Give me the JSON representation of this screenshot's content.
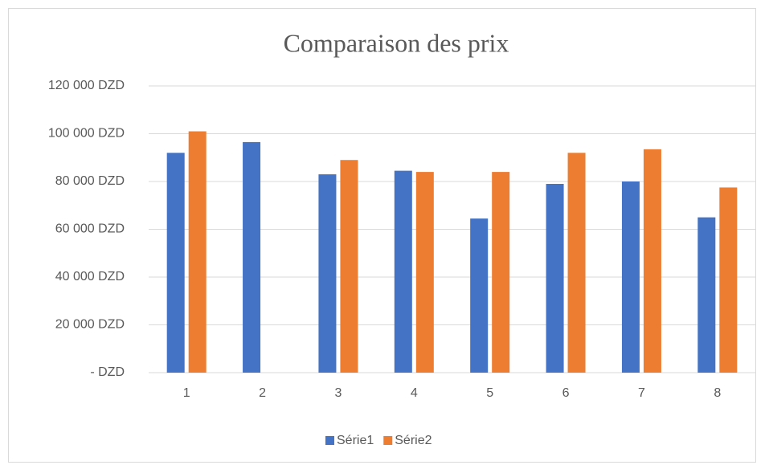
{
  "chart_data": {
    "type": "bar",
    "title": "Comparaison des prix",
    "categories": [
      "1",
      "2",
      "3",
      "4",
      "5",
      "6",
      "7",
      "8"
    ],
    "series": [
      {
        "name": "Série1",
        "color": "#4472c4",
        "values": [
          92000,
          96500,
          83000,
          84500,
          64500,
          79000,
          80000,
          65000
        ]
      },
      {
        "name": "Série2",
        "color": "#ed7d31",
        "values": [
          101000,
          null,
          89000,
          84000,
          84000,
          92000,
          93500,
          77500
        ]
      }
    ],
    "ylim": [
      0,
      120000
    ],
    "yticks": [
      {
        "value": 0,
        "label": "- DZD"
      },
      {
        "value": 20000,
        "label": "20 000 DZD"
      },
      {
        "value": 40000,
        "label": "40 000 DZD"
      },
      {
        "value": 60000,
        "label": "60 000 DZD"
      },
      {
        "value": 80000,
        "label": "80 000 DZD"
      },
      {
        "value": 100000,
        "label": "100 000 DZD"
      },
      {
        "value": 120000,
        "label": "120 000 DZD"
      }
    ],
    "grid": true,
    "legend": "bottom"
  }
}
